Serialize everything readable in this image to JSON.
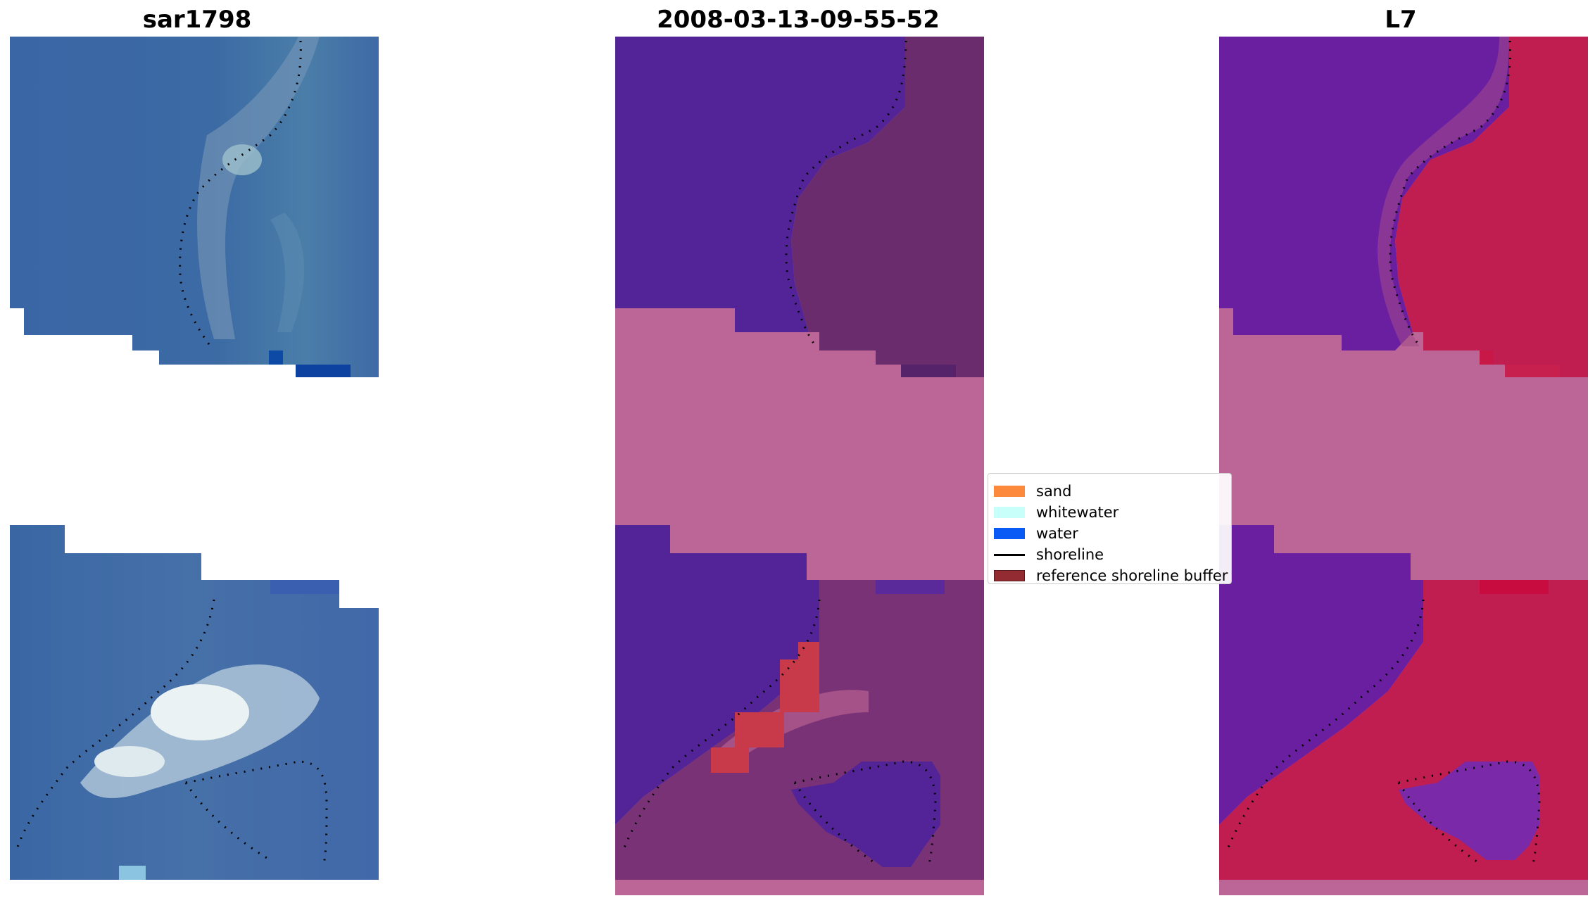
{
  "panels": [
    {
      "title": "sar1798"
    },
    {
      "title": "2008-03-13-09-55-52"
    },
    {
      "title": "L7"
    }
  ],
  "legend": {
    "items": [
      {
        "label": "sand",
        "kind": "patch",
        "color": "#fd8a3c"
      },
      {
        "label": "whitewater",
        "kind": "patch",
        "color": "#c8fffb"
      },
      {
        "label": "water",
        "kind": "patch",
        "color": "#0a5af5"
      },
      {
        "label": "shoreline",
        "kind": "line",
        "color": "#000000"
      },
      {
        "label": "reference shoreline buffer",
        "kind": "patch",
        "color": "#922b32"
      }
    ]
  },
  "colors": {
    "rgb_water": "#3a66a8",
    "rgb_deep_water": "#0d46a0",
    "rgb_whitewater": "#e8f2f4",
    "class_water_overlay": "#532497",
    "class_land_overlay": "#6b2c6e",
    "class_buffer_overlay": "#c8394a",
    "mask_pink": "#bb6696",
    "index_water": "#6a1ea0",
    "index_land": "#c01e50"
  }
}
